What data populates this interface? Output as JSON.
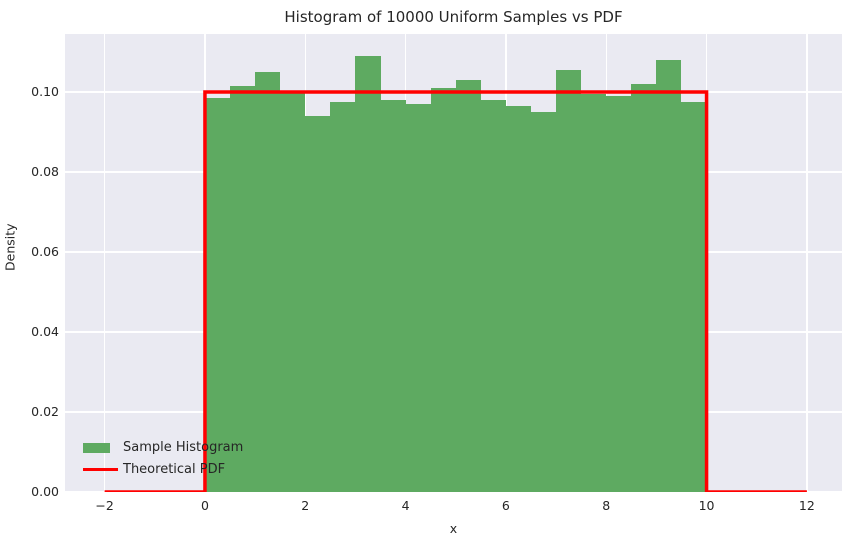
{
  "colors": {
    "bar_fill": "#5EAA61",
    "pdf_line": "#FF0000",
    "axes_background": "#EAEAF2",
    "gridline": "#FFFFFF",
    "text": "#262626",
    "figure_background": "#FFFFFF"
  },
  "legend": {
    "items": [
      {
        "label": "Sample Histogram",
        "swatch": "patch",
        "color": "#5EAA61"
      },
      {
        "label": "Theoretical PDF",
        "swatch": "line",
        "color": "#FF0000"
      }
    ]
  },
  "chart_data": {
    "type": "bar",
    "title": "Histogram of 10000 Uniform Samples vs PDF",
    "xlabel": "x",
    "ylabel": "Density",
    "xlim": [
      -2.79,
      12.7
    ],
    "ylim": [
      0,
      0.1145
    ],
    "grid": true,
    "legend_position": "lower left",
    "xticks": {
      "values": [
        -2,
        0,
        2,
        4,
        6,
        8,
        10,
        12
      ],
      "labels": [
        "−2",
        "0",
        "2",
        "4",
        "6",
        "8",
        "10",
        "12"
      ]
    },
    "yticks": {
      "values": [
        0,
        0.02,
        0.04,
        0.06,
        0.08,
        0.1
      ],
      "labels": [
        "0.00",
        "0.02",
        "0.04",
        "0.06",
        "0.08",
        "0.10"
      ]
    },
    "series": [
      {
        "name": "Sample Histogram",
        "kind": "histogram",
        "n_samples": 10000,
        "bin_start": 0,
        "bin_end": 10,
        "bin_width": 0.5,
        "densities": [
          0.0985,
          0.1015,
          0.105,
          0.1,
          0.094,
          0.0975,
          0.109,
          0.098,
          0.097,
          0.101,
          0.103,
          0.098,
          0.0965,
          0.095,
          0.1055,
          0.0995,
          0.099,
          0.102,
          0.108,
          0.0975
        ]
      },
      {
        "name": "Theoretical PDF",
        "kind": "line",
        "points": [
          [
            -2,
            0
          ],
          [
            0,
            0
          ],
          [
            0,
            0.1
          ],
          [
            10,
            0.1
          ],
          [
            10,
            0
          ],
          [
            12,
            0
          ]
        ]
      }
    ]
  }
}
